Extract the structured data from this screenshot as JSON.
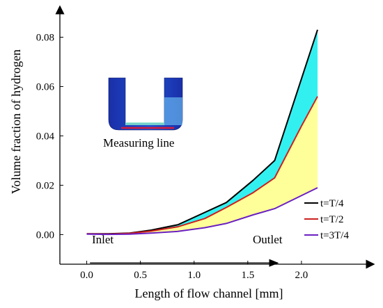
{
  "chart_data": {
    "type": "line",
    "title": "",
    "xlabel": "Length of flow channel [mm]",
    "ylabel": "Volume fraction of hydrogen",
    "xlim": [
      -0.25,
      2.5
    ],
    "ylim": [
      -0.012,
      0.09
    ],
    "xticks": [
      0.0,
      0.5,
      1.0,
      1.5,
      2.0
    ],
    "xtick_labels": [
      "0.0",
      "0.5",
      "1.0",
      "1.5",
      "2.0"
    ],
    "yticks": [
      0.0,
      0.02,
      0.04,
      0.06,
      0.08
    ],
    "ytick_labels": [
      "0.00",
      "0.02",
      "0.04",
      "0.06",
      "0.08"
    ],
    "grid": false,
    "legend_position": "bottom-right",
    "series": [
      {
        "name": "t=T/4",
        "color": "#000000",
        "x": [
          0.0,
          0.2,
          0.4,
          0.6,
          0.85,
          1.1,
          1.3,
          1.55,
          1.75,
          2.15
        ],
        "y": [
          0.0003,
          0.0003,
          0.0006,
          0.0018,
          0.004,
          0.009,
          0.013,
          0.022,
          0.03,
          0.083
        ]
      },
      {
        "name": "t=T/2",
        "color": "#cc1f1f",
        "x": [
          0.0,
          0.2,
          0.4,
          0.6,
          0.85,
          1.1,
          1.3,
          1.55,
          1.75,
          2.0,
          2.15
        ],
        "y": [
          0.0003,
          0.0002,
          0.0005,
          0.0014,
          0.0032,
          0.0065,
          0.011,
          0.017,
          0.023,
          0.044,
          0.056
        ]
      },
      {
        "name": "t=3T/4",
        "color": "#6a1fc2",
        "x": [
          0.0,
          0.2,
          0.4,
          0.6,
          0.85,
          1.1,
          1.3,
          1.55,
          1.75,
          2.15
        ],
        "y": [
          0.0002,
          0.0001,
          0.0002,
          0.0006,
          0.0013,
          0.0028,
          0.0045,
          0.008,
          0.0105,
          0.019
        ]
      }
    ],
    "fills": {
      "upper_band_color": "#33f0f0",
      "lower_band_color": "#ffff99"
    },
    "annotations": {
      "inset_caption": "Measuring line",
      "inlet_label": "Inlet",
      "outlet_label": "Outlet",
      "arrow_y": -0.0115
    }
  }
}
